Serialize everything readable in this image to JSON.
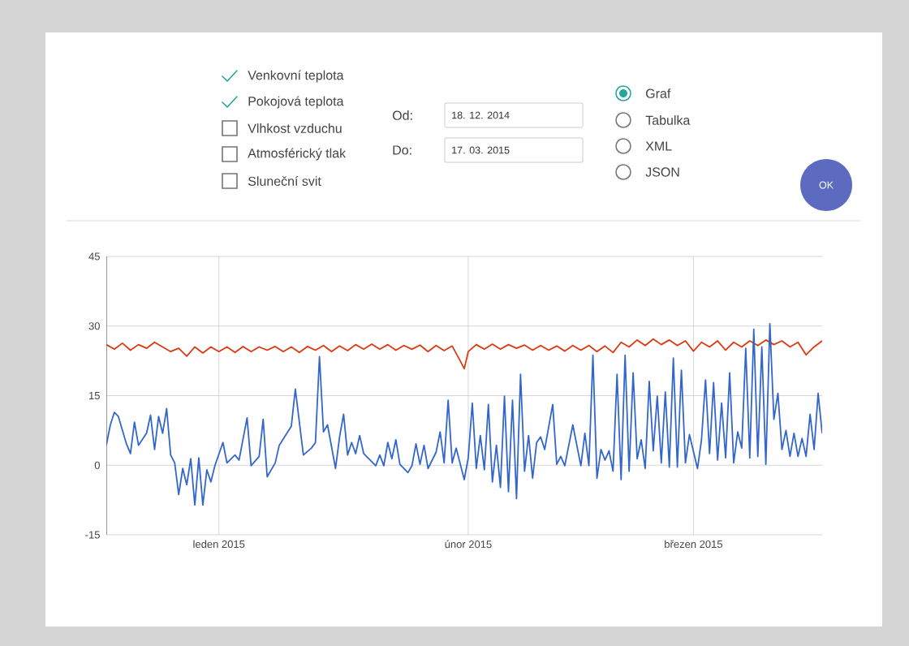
{
  "chart_data": {
    "type": "line",
    "xlim": [
      "2014-12-18",
      "2015-03-17"
    ],
    "xticks": [
      {
        "value": "2015-01-01",
        "label": "leden 2015"
      },
      {
        "value": "2015-02-01",
        "label": "únor 2015"
      },
      {
        "value": "2015-03-01",
        "label": "březen 2015"
      }
    ],
    "ylim": [
      -15,
      45
    ],
    "yticks": [
      -15,
      0,
      15,
      30,
      45
    ],
    "grid": true,
    "series": [
      {
        "color": "#dc3912",
        "x": [
          "2014-12-18",
          "2014-12-19",
          "2014-12-20",
          "2014-12-21",
          "2014-12-22",
          "2014-12-23",
          "2014-12-24",
          "2014-12-25",
          "2014-12-26",
          "2014-12-27",
          "2014-12-28",
          "2014-12-29",
          "2014-12-30",
          "2014-12-31",
          "2015-01-01",
          "2015-01-02",
          "2015-01-03",
          "2015-01-04",
          "2015-01-05",
          "2015-01-06",
          "2015-01-07",
          "2015-01-08",
          "2015-01-09",
          "2015-01-10",
          "2015-01-11",
          "2015-01-12",
          "2015-01-13",
          "2015-01-14",
          "2015-01-15",
          "2015-01-16",
          "2015-01-17",
          "2015-01-18",
          "2015-01-19",
          "2015-01-20",
          "2015-01-21",
          "2015-01-22",
          "2015-01-23",
          "2015-01-24",
          "2015-01-25",
          "2015-01-26",
          "2015-01-27",
          "2015-01-28",
          "2015-01-29",
          "2015-01-30",
          "2015-01-31",
          "2015-01-31T12:00",
          "2015-02-01",
          "2015-02-02",
          "2015-02-03",
          "2015-02-04",
          "2015-02-05",
          "2015-02-06",
          "2015-02-07",
          "2015-02-08",
          "2015-02-09",
          "2015-02-10",
          "2015-02-11",
          "2015-02-12",
          "2015-02-13",
          "2015-02-14",
          "2015-02-15",
          "2015-02-16",
          "2015-02-17",
          "2015-02-18",
          "2015-02-19",
          "2015-02-20",
          "2015-02-21",
          "2015-02-22",
          "2015-02-23",
          "2015-02-24",
          "2015-02-25",
          "2015-02-26",
          "2015-02-27",
          "2015-02-28",
          "2015-03-01",
          "2015-03-02",
          "2015-03-03",
          "2015-03-04",
          "2015-03-05",
          "2015-03-06",
          "2015-03-07",
          "2015-03-08",
          "2015-03-09",
          "2015-03-10",
          "2015-03-11",
          "2015-03-12",
          "2015-03-13",
          "2015-03-14",
          "2015-03-15",
          "2015-03-16",
          "2015-03-17"
        ],
        "values": [
          26,
          25,
          26.3,
          24.8,
          26,
          25.2,
          26.5,
          25.5,
          24.5,
          25.2,
          23.5,
          25.5,
          24.2,
          25.5,
          24.5,
          25.5,
          24.3,
          25.6,
          24.5,
          25.5,
          24.8,
          25.6,
          24.5,
          25.5,
          24.3,
          25.6,
          24.8,
          25.8,
          24.5,
          25.7,
          24.7,
          26,
          25,
          26.1,
          25,
          26,
          24.8,
          25.8,
          25,
          25.9,
          24.5,
          25.8,
          24.7,
          25.7,
          22.5,
          20.8,
          24.5,
          26,
          25,
          26.1,
          25,
          26,
          25.2,
          25.9,
          24.8,
          25.8,
          24.8,
          25.7,
          24.6,
          25.8,
          24.8,
          25.8,
          24.5,
          25.7,
          24.3,
          26.5,
          25.5,
          27,
          25.8,
          27.2,
          26,
          27,
          25.8,
          26.8,
          24.6,
          26.5,
          25.5,
          26.8,
          24.8,
          26.5,
          25.5,
          26.8,
          25.8,
          27,
          26,
          26.8,
          25.5,
          26.5,
          23.8,
          25.5,
          26.8
        ]
      },
      {
        "color": "#3366cc",
        "x": [
          "2014-12-18",
          "2014-12-18T12:00",
          "2014-12-19",
          "2014-12-19T12:00",
          "2014-12-20T12:00",
          "2014-12-21",
          "2014-12-21T12:00",
          "2014-12-22",
          "2014-12-23",
          "2014-12-23T12:00",
          "2014-12-24",
          "2014-12-24T12:00",
          "2014-12-25",
          "2014-12-25T12:00",
          "2014-12-26",
          "2014-12-26T12:00",
          "2014-12-27",
          "2014-12-27T12:00",
          "2014-12-28",
          "2014-12-28T12:00",
          "2014-12-29",
          "2014-12-29T12:00",
          "2014-12-30",
          "2014-12-30T12:00",
          "2014-12-31",
          "2014-12-31T12:00",
          "2015-01-01T12:00",
          "2015-01-02",
          "2015-01-03",
          "2015-01-03T12:00",
          "2015-01-04T12:00",
          "2015-01-05",
          "2015-01-06",
          "2015-01-06T12:00",
          "2015-01-07",
          "2015-01-08",
          "2015-01-08T12:00",
          "2015-01-10",
          "2015-01-10T12:00",
          "2015-01-11T12:00",
          "2015-01-12T12:00",
          "2015-01-13",
          "2015-01-13T12:00",
          "2015-01-14",
          "2015-01-14T12:00",
          "2015-01-15T12:00",
          "2015-01-16",
          "2015-01-16T12:00",
          "2015-01-17",
          "2015-01-17T12:00",
          "2015-01-18",
          "2015-01-18T12:00",
          "2015-01-19",
          "2015-01-20T12:00",
          "2015-01-21",
          "2015-01-21T12:00",
          "2015-01-22",
          "2015-01-22T12:00",
          "2015-01-23",
          "2015-01-23T12:00",
          "2015-01-24T12:00",
          "2015-01-25",
          "2015-01-25T12:00",
          "2015-01-26",
          "2015-01-26T12:00",
          "2015-01-27",
          "2015-01-28",
          "2015-01-28T12:00",
          "2015-01-29",
          "2015-01-29T12:00",
          "2015-01-30",
          "2015-01-30T12:00",
          "2015-01-31T12:00",
          "2015-02-01",
          "2015-02-01T12:00",
          "2015-02-02",
          "2015-02-02T12:00",
          "2015-02-03",
          "2015-02-03T12:00",
          "2015-02-04",
          "2015-02-04T12:00",
          "2015-02-05",
          "2015-02-05T12:00",
          "2015-02-06",
          "2015-02-06T12:00",
          "2015-02-07",
          "2015-02-07T12:00",
          "2015-02-08",
          "2015-02-08T12:00",
          "2015-02-09",
          "2015-02-09T12:00",
          "2015-02-10",
          "2015-02-10T12:00",
          "2015-02-11T12:00",
          "2015-02-12",
          "2015-02-12T12:00",
          "2015-02-13",
          "2015-02-14",
          "2015-02-15",
          "2015-02-15T12:00",
          "2015-02-16",
          "2015-02-16T12:00",
          "2015-02-17",
          "2015-02-17T12:00",
          "2015-02-18",
          "2015-02-18T12:00",
          "2015-02-19",
          "2015-02-19T12:00",
          "2015-02-20",
          "2015-02-20T12:00",
          "2015-02-21",
          "2015-02-21T12:00",
          "2015-02-22",
          "2015-02-22T12:00",
          "2015-02-23",
          "2015-02-23T12:00",
          "2015-02-24",
          "2015-02-24T12:00",
          "2015-02-25",
          "2015-02-25T12:00",
          "2015-02-26",
          "2015-02-26T12:00",
          "2015-02-27",
          "2015-02-27T12:00",
          "2015-02-28",
          "2015-02-28T12:00",
          "2015-03-01T12:00",
          "2015-03-02",
          "2015-03-02T12:00",
          "2015-03-03",
          "2015-03-03T12:00",
          "2015-03-04",
          "2015-03-04T12:00",
          "2015-03-05",
          "2015-03-05T12:00",
          "2015-03-06",
          "2015-03-06T12:00",
          "2015-03-07",
          "2015-03-07T12:00",
          "2015-03-08",
          "2015-03-08T12:00",
          "2015-03-09",
          "2015-03-09T12:00",
          "2015-03-10",
          "2015-03-10T12:00",
          "2015-03-11",
          "2015-03-11T12:00",
          "2015-03-12",
          "2015-03-12T12:00",
          "2015-03-13",
          "2015-03-13T12:00",
          "2015-03-14",
          "2015-03-14T12:00",
          "2015-03-15",
          "2015-03-15T12:00",
          "2015-03-16",
          "2015-03-16T12:00",
          "2015-03-17"
        ],
        "values": [
          4.3,
          8.7,
          11.4,
          10.5,
          4.6,
          2.5,
          9.3,
          4.3,
          6.9,
          10.8,
          3.4,
          10.5,
          6.9,
          12.2,
          2.2,
          0.5,
          -6.3,
          -0.7,
          -4.2,
          1.4,
          -8.6,
          1.6,
          -8.6,
          -1,
          -3.6,
          -0.1,
          4.9,
          0.5,
          2.2,
          1.1,
          10.2,
          -0.1,
          1.9,
          9.9,
          -2.5,
          0.5,
          4.3,
          8.4,
          16.4,
          2.2,
          3.7,
          4.9,
          23.4,
          7.2,
          8.7,
          -0.7,
          6.1,
          11,
          2.2,
          4.9,
          2.5,
          6.4,
          2.5,
          -0.1,
          2.2,
          -0.1,
          4.9,
          1.4,
          5.5,
          0.2,
          -1.6,
          -0.1,
          4.6,
          0.2,
          4.3,
          -0.7,
          2.8,
          7.2,
          0.5,
          14,
          0.5,
          3.7,
          -3.1,
          1.6,
          13.4,
          -0.7,
          6.4,
          -1,
          13.1,
          -3.6,
          4.3,
          -4.8,
          14.9,
          -5.7,
          14,
          -7.2,
          19.6,
          -1.3,
          6.4,
          -2.8,
          4.9,
          6.1,
          3.4,
          13.1,
          0.2,
          1.9,
          -0.1,
          8.7,
          -0.1,
          6.9,
          -0.1,
          23.7,
          -2.8,
          3.4,
          1.1,
          3.1,
          -1.3,
          19.6,
          -3.1,
          23.7,
          -1.3,
          19.9,
          1.4,
          5.5,
          -0.7,
          18.1,
          3.1,
          14.9,
          0.5,
          15.8,
          -0.4,
          23.1,
          -0.4,
          20.5,
          0.5,
          6.6,
          -0.7,
          5.5,
          18.4,
          2.5,
          17.8,
          1.1,
          13.4,
          1.6,
          19.9,
          0.5,
          7.2,
          3.7,
          25.2,
          1.6,
          29.3,
          1.9,
          25.5,
          0.2,
          30.5,
          9.9,
          15.5,
          3.4,
          7.5,
          1.9,
          6.9,
          1.9,
          5.8,
          1.9,
          11,
          3.4,
          15.5,
          6.9
        ]
      }
    ],
    "annotations": [
      "Venkovní teplota",
      "Pokojová teplota",
      "Vlhkost vzduchu",
      "Atmosférický tlak",
      "Sluneční svit",
      "Od:",
      "18. 12. 2014",
      "Do:",
      "17. 03. 2015",
      "Graf",
      "Tabulka",
      "XML",
      "JSON",
      "OK"
    ]
  }
}
